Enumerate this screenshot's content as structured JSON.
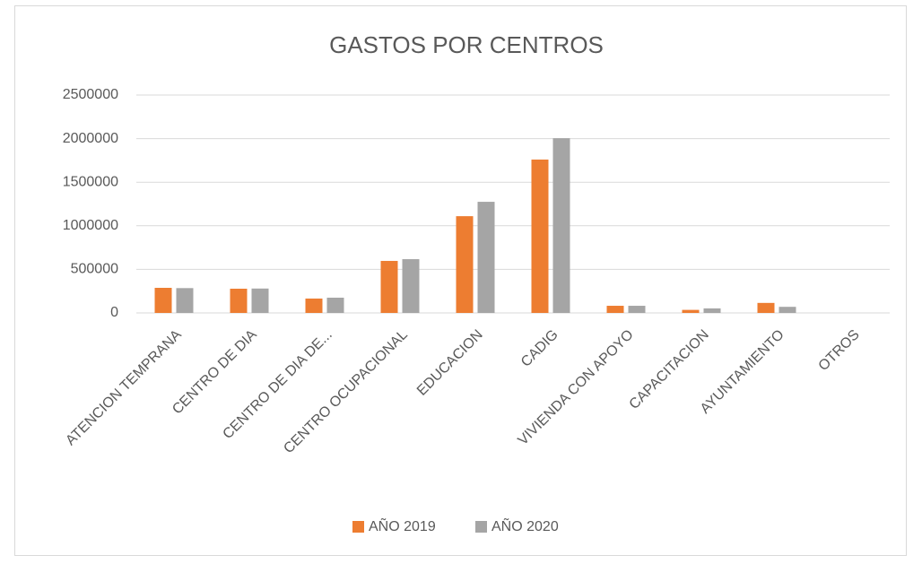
{
  "chart_data": {
    "type": "bar",
    "title": "GASTOS POR CENTROS",
    "categories": [
      "ATENCION TEMPRANA",
      "CENTRO DE DIA",
      "CENTRO DE DIA DE...",
      "CENTRO OCUPACIONAL",
      "EDUCACION",
      "CADIG",
      "VIVIENDA CON APOYO",
      "CAPACITACION",
      "AYUNTAMIENTO",
      "OTROS"
    ],
    "series": [
      {
        "name": "AÑO 2019",
        "color": "#ed7d31",
        "values": [
          288000,
          278000,
          165000,
          597000,
          1110000,
          1760000,
          82000,
          35000,
          115000,
          0
        ]
      },
      {
        "name": "AÑO 2020",
        "color": "#a5a5a5",
        "values": [
          285000,
          280000,
          175000,
          617000,
          1275000,
          2005000,
          82000,
          52000,
          70000,
          0
        ]
      }
    ],
    "ylim": [
      0,
      2500000
    ],
    "yticks": [
      0,
      500000,
      1000000,
      1500000,
      2000000,
      2500000
    ],
    "grid": true,
    "legend": "bottom"
  }
}
